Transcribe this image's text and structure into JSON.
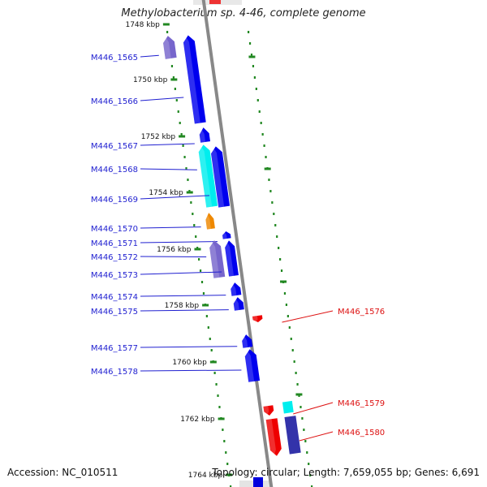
{
  "title": "Methylobacterium sp. 4-46, complete genome",
  "accession_text": "Accession: NC_010511",
  "topology_text": "Topology: circular; Length: 7,659,055 bp; Genes: 6,691",
  "colors": {
    "forward_gene": "#0000ee",
    "reverse_gene": "#ee0000",
    "forward_label": "#1f1fd0",
    "reverse_label": "#dd1111",
    "tick": "#228822",
    "backbone": "#888888"
  },
  "scale_ticks": [
    "1748 kbp",
    "1750 kbp",
    "1752 kbp",
    "1754 kbp",
    "1756 kbp",
    "1758 kbp",
    "1760 kbp",
    "1762 kbp",
    "1764 kbp"
  ],
  "features": [
    {
      "name": "M446_1565",
      "strand": "forward",
      "color": "#7766cc",
      "label_color": "#1f1fd0"
    },
    {
      "name": "M446_1566",
      "strand": "forward",
      "color": "#0000ee",
      "label_color": "#1f1fd0"
    },
    {
      "name": "M446_1567",
      "strand": "forward",
      "color": "#0000ee",
      "label_color": "#1f1fd0"
    },
    {
      "name": "M446_1568",
      "strand": "forward",
      "color": "#00eeee",
      "label_color": "#1f1fd0"
    },
    {
      "name": "M446_1569",
      "strand": "forward",
      "color": "#0000ee",
      "label_color": "#1f1fd0"
    },
    {
      "name": "M446_1570",
      "strand": "forward",
      "color": "#ee8800",
      "label_color": "#1f1fd0"
    },
    {
      "name": "M446_1571",
      "strand": "forward",
      "color": "#0000ee",
      "label_color": "#1f1fd0"
    },
    {
      "name": "M446_1572",
      "strand": "forward",
      "color": "#7766cc",
      "label_color": "#1f1fd0"
    },
    {
      "name": "M446_1573",
      "strand": "forward",
      "color": "#0000ee",
      "label_color": "#1f1fd0"
    },
    {
      "name": "M446_1574",
      "strand": "forward",
      "color": "#0000ee",
      "label_color": "#1f1fd0"
    },
    {
      "name": "M446_1575",
      "strand": "forward",
      "color": "#0000ee",
      "label_color": "#1f1fd0"
    },
    {
      "name": "M446_1576",
      "strand": "reverse",
      "color": "#ee0000",
      "label_color": "#dd1111"
    },
    {
      "name": "M446_1577",
      "strand": "forward",
      "color": "#0000ee",
      "label_color": "#1f1fd0"
    },
    {
      "name": "M446_1578",
      "strand": "forward",
      "color": "#0000ee",
      "label_color": "#1f1fd0"
    },
    {
      "name": "M446_1579",
      "strand": "reverse",
      "color": "#ee0000",
      "label_color": "#dd1111"
    },
    {
      "name": "M446_1580",
      "strand": "reverse",
      "color": "#ee0000",
      "label_color": "#dd1111"
    }
  ]
}
